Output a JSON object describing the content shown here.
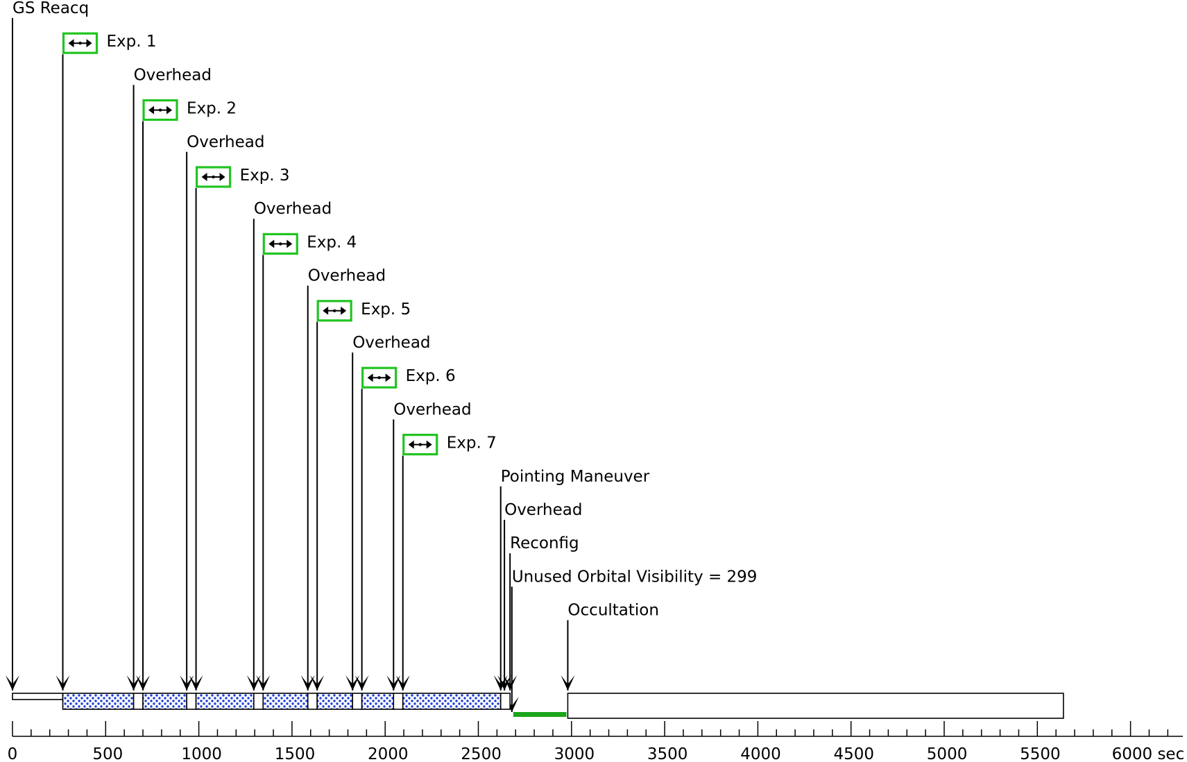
{
  "timeline": {
    "axis_unit": "sec",
    "axis_max": 6200,
    "tick_labels": [
      "0",
      "500",
      "1000",
      "1500",
      "2000",
      "2500",
      "3000",
      "3500",
      "4000",
      "4500",
      "5000",
      "5500",
      "6000 sec"
    ],
    "colors": {
      "exposure_fill": "#1f3fd6",
      "exposure_icon_border": "#22c422",
      "unused_visibility": "#1aa51a",
      "line": "#000000"
    },
    "events": [
      {
        "label": "GS Reacq",
        "t": 0,
        "kind": "text"
      },
      {
        "label": "Exp. 1",
        "t": 270,
        "kind": "exposure"
      },
      {
        "label": "Overhead",
        "t": 650,
        "kind": "text"
      },
      {
        "label": "Exp. 2",
        "t": 700,
        "kind": "exposure"
      },
      {
        "label": "Overhead",
        "t": 935,
        "kind": "text"
      },
      {
        "label": "Exp. 3",
        "t": 985,
        "kind": "exposure"
      },
      {
        "label": "Overhead",
        "t": 1295,
        "kind": "text"
      },
      {
        "label": "Exp. 4",
        "t": 1345,
        "kind": "exposure"
      },
      {
        "label": "Overhead",
        "t": 1585,
        "kind": "text"
      },
      {
        "label": "Exp. 5",
        "t": 1635,
        "kind": "exposure"
      },
      {
        "label": "Overhead",
        "t": 1825,
        "kind": "text"
      },
      {
        "label": "Exp. 6",
        "t": 1875,
        "kind": "exposure"
      },
      {
        "label": "Overhead",
        "t": 2045,
        "kind": "text"
      },
      {
        "label": "Exp. 7",
        "t": 2095,
        "kind": "exposure"
      },
      {
        "label": "Pointing Maneuver",
        "t": 2620,
        "kind": "text"
      },
      {
        "label": "Overhead",
        "t": 2640,
        "kind": "text"
      },
      {
        "label": "Reconfig",
        "t": 2670,
        "kind": "text"
      },
      {
        "label": "Unused Orbital Visibility = 299",
        "t": 2680,
        "kind": "text"
      },
      {
        "label": "Occultation",
        "t": 2980,
        "kind": "text"
      }
    ],
    "segments": [
      {
        "kind": "gs_reacq",
        "start": 0,
        "end": 270
      },
      {
        "kind": "exposure",
        "start": 270,
        "end": 650
      },
      {
        "kind": "overhead",
        "start": 650,
        "end": 700
      },
      {
        "kind": "exposure",
        "start": 700,
        "end": 935
      },
      {
        "kind": "overhead",
        "start": 935,
        "end": 985
      },
      {
        "kind": "exposure",
        "start": 985,
        "end": 1295
      },
      {
        "kind": "overhead",
        "start": 1295,
        "end": 1345
      },
      {
        "kind": "exposure",
        "start": 1345,
        "end": 1585
      },
      {
        "kind": "overhead",
        "start": 1585,
        "end": 1635
      },
      {
        "kind": "exposure",
        "start": 1635,
        "end": 1825
      },
      {
        "kind": "overhead",
        "start": 1825,
        "end": 1875
      },
      {
        "kind": "exposure",
        "start": 1875,
        "end": 2045
      },
      {
        "kind": "overhead",
        "start": 2045,
        "end": 2095
      },
      {
        "kind": "exposure",
        "start": 2095,
        "end": 2620
      },
      {
        "kind": "overhead",
        "start": 2620,
        "end": 2670
      },
      {
        "kind": "unused",
        "start": 2680,
        "end": 2980
      },
      {
        "kind": "occultation",
        "start": 2980,
        "end": 5640
      }
    ]
  }
}
